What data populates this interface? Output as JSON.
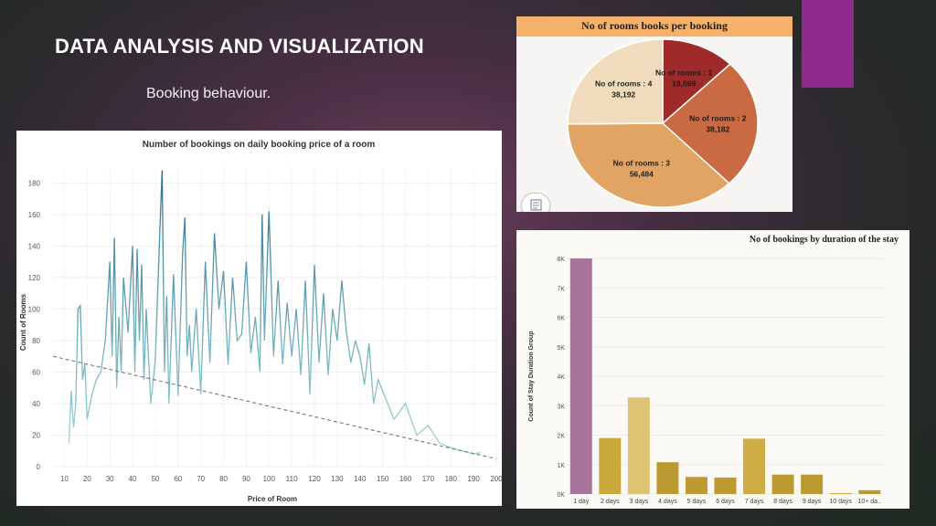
{
  "slide": {
    "title": "DATA ANALYSIS AND VISUALIZATION",
    "subtitle": "Booking behaviour.",
    "colors": {
      "accent_bar": "#8f2a8f",
      "bg_center": "#6a3f5a",
      "bg_edge": "#1f2a22"
    }
  },
  "chart_data": [
    {
      "type": "line",
      "title": "Number of bookings on daily booking price of a room",
      "xlabel": "Price of Room",
      "ylabel": "Count of Rooms",
      "xlim": [
        5,
        200
      ],
      "ylim": [
        0,
        190
      ],
      "xticks": [
        10,
        20,
        30,
        40,
        50,
        60,
        70,
        80,
        90,
        100,
        110,
        120,
        130,
        140,
        150,
        160,
        170,
        180,
        190,
        200
      ],
      "yticks": [
        0,
        20,
        40,
        60,
        80,
        100,
        120,
        140,
        160,
        180
      ],
      "trendline": {
        "x": [
          5,
          200
        ],
        "y": [
          70,
          5
        ],
        "style": "dashed"
      },
      "series": [
        {
          "name": "Count of Rooms",
          "x": [
            12,
            13,
            14,
            15,
            16,
            17,
            18,
            19,
            20,
            22,
            24,
            26,
            28,
            30,
            31,
            32,
            33,
            34,
            35,
            36,
            38,
            40,
            41,
            42,
            43,
            44,
            45,
            46,
            48,
            50,
            52,
            53,
            54,
            55,
            56,
            58,
            60,
            62,
            63,
            64,
            65,
            66,
            68,
            70,
            72,
            74,
            76,
            78,
            80,
            82,
            84,
            86,
            88,
            90,
            92,
            94,
            96,
            97,
            98,
            100,
            102,
            104,
            106,
            108,
            110,
            112,
            114,
            116,
            118,
            120,
            122,
            124,
            126,
            128,
            130,
            132,
            134,
            136,
            138,
            140,
            142,
            144,
            146,
            148,
            150,
            155,
            160,
            165,
            170,
            175,
            180,
            185,
            190,
            193
          ],
          "values": [
            15,
            48,
            25,
            40,
            100,
            102,
            55,
            65,
            30,
            45,
            55,
            60,
            80,
            130,
            70,
            145,
            50,
            95,
            60,
            120,
            85,
            140,
            60,
            138,
            80,
            128,
            55,
            100,
            40,
            68,
            150,
            188,
            60,
            108,
            40,
            122,
            45,
            135,
            158,
            70,
            90,
            60,
            100,
            46,
            130,
            66,
            148,
            100,
            124,
            65,
            120,
            80,
            84,
            130,
            72,
            95,
            60,
            160,
            80,
            162,
            70,
            118,
            65,
            104,
            70,
            100,
            58,
            118,
            46,
            128,
            66,
            110,
            58,
            100,
            80,
            118,
            86,
            66,
            80,
            70,
            52,
            78,
            40,
            55,
            48,
            30,
            40,
            20,
            26,
            15,
            12,
            10,
            8,
            9
          ]
        }
      ]
    },
    {
      "type": "pie",
      "title": "No of rooms books per booking",
      "labels": [
        "No of rooms : 1",
        "No of rooms : 2",
        "No of rooms : 3",
        "No of rooms : 4"
      ],
      "value_labels": [
        "19,069",
        "38,182",
        "56,484",
        "38,192"
      ],
      "values": [
        19069,
        38182,
        56484,
        38192
      ],
      "colors": [
        "#9e2b2a",
        "#c96a42",
        "#e2a464",
        "#f0dcbd"
      ]
    },
    {
      "type": "bar",
      "title": "No of bookings by duration of the stay",
      "xlabel": "",
      "ylabel": "Count of Stay Duration Group",
      "categories": [
        "1 day",
        "2 days",
        "3 days",
        "4 days",
        "5 days",
        "6 days",
        "7 days",
        "8 days",
        "9 days",
        "10 days",
        "10+ da.."
      ],
      "values": [
        8000,
        1900,
        3280,
        1080,
        580,
        560,
        1880,
        660,
        660,
        30,
        130
      ],
      "colors": [
        "#a8749c",
        "#c9a83c",
        "#ddc475",
        "#bc9a32",
        "#bc9a32",
        "#bc9a32",
        "#cfad45",
        "#bc9a32",
        "#bc9a32",
        "#c9a83c",
        "#bc9a32"
      ],
      "ylim": [
        0,
        8000
      ],
      "ytick_labels": [
        "0K",
        "1K",
        "2K",
        "3K",
        "4K",
        "5K",
        "6K",
        "7K",
        "8K"
      ]
    }
  ]
}
